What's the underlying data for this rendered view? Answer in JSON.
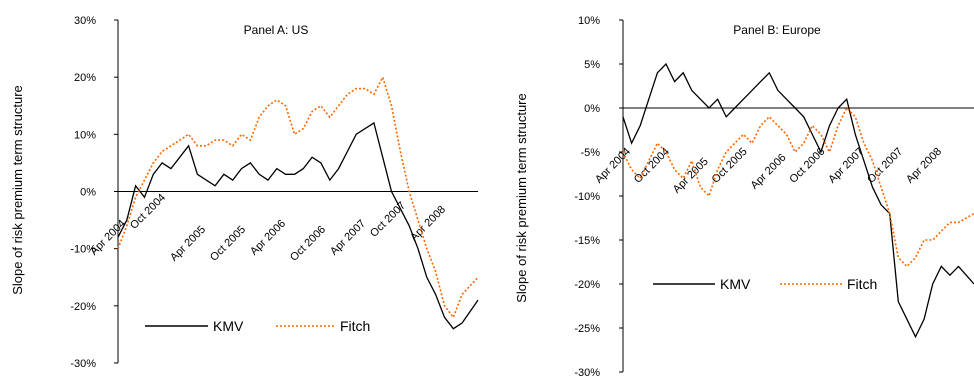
{
  "chart_data": [
    {
      "type": "line",
      "title": "Panel A: US",
      "ylabel": "Slope of risk premium term structure",
      "ylim": [
        -30,
        30
      ],
      "yticks": [
        "30%",
        "20%",
        "10%",
        "0%",
        "-10%",
        "-20%",
        "-30%"
      ],
      "xticks": [
        "Apr 2004",
        "Oct 2004",
        "Apr 2005",
        "Oct 2005",
        "Apr 2006",
        "Oct 2006",
        "Apr 2007",
        "Oct 2007",
        "Apr 2008"
      ],
      "legend_position": "bottom",
      "series": [
        {
          "name": "KMV",
          "color": "#000000",
          "style": "solid",
          "x": [
            0,
            0.25,
            0.5,
            0.75,
            1,
            1.25,
            1.5,
            1.75,
            2,
            2.25,
            2.5,
            2.75,
            3,
            3.25,
            3.5,
            3.75,
            4,
            4.25,
            4.5,
            4.75,
            5,
            5.25,
            5.5,
            5.75,
            6,
            6.25,
            6.5,
            6.75,
            7,
            7.25,
            7.5,
            7.75,
            8,
            8.25,
            8.5,
            8.75,
            9,
            9.25,
            9.5,
            9.75,
            10.2
          ],
          "values": [
            -8,
            -5,
            1,
            -1,
            3,
            5,
            4,
            6,
            8,
            3,
            2,
            1,
            3,
            2,
            4,
            5,
            3,
            2,
            4,
            3,
            3,
            4,
            6,
            5,
            2,
            4,
            7,
            10,
            11,
            12,
            6,
            0,
            -3,
            -6,
            -10,
            -15,
            -18,
            -22,
            -24,
            -23,
            -19
          ]
        },
        {
          "name": "Fitch",
          "color": "#ff6600",
          "style": "dotted",
          "x": [
            0,
            0.25,
            0.5,
            0.75,
            1,
            1.25,
            1.5,
            1.75,
            2,
            2.25,
            2.5,
            2.75,
            3,
            3.25,
            3.5,
            3.75,
            4,
            4.25,
            4.5,
            4.75,
            5,
            5.25,
            5.5,
            5.75,
            6,
            6.25,
            6.5,
            6.75,
            7,
            7.25,
            7.5,
            7.75,
            8,
            8.25,
            8.5,
            8.75,
            9,
            9.25,
            9.5,
            9.75,
            10.2
          ],
          "values": [
            -10,
            -6,
            -1,
            2,
            5,
            7,
            8,
            9,
            10,
            8,
            8,
            9,
            9,
            8,
            10,
            9,
            13,
            15,
            16,
            15,
            10,
            11,
            14,
            15,
            13,
            15,
            17,
            18,
            18,
            17,
            20,
            15,
            7,
            0,
            -5,
            -10,
            -14,
            -20,
            -22,
            -18,
            -15
          ]
        }
      ]
    },
    {
      "type": "line",
      "title": "Panel B: Europe",
      "ylabel": "Slope of risk premium term structure",
      "ylim": [
        -30,
        10
      ],
      "yticks": [
        "10%",
        "5%",
        "0%",
        "-5%",
        "-10%",
        "-15%",
        "-20%",
        "-25%",
        "-30%"
      ],
      "xticks": [
        "Apr 2004",
        "Oct 2004",
        "Apr 2005",
        "Oct 2005",
        "Apr 2006",
        "Oct 2006",
        "Apr 2007",
        "Oct 2007",
        "Apr 2008"
      ],
      "legend_position": "bottom",
      "series": [
        {
          "name": "KMV",
          "color": "#000000",
          "style": "solid",
          "x": [
            0,
            0.25,
            0.5,
            0.75,
            1,
            1.25,
            1.5,
            1.75,
            2,
            2.25,
            2.5,
            2.75,
            3,
            3.25,
            3.5,
            3.75,
            4,
            4.25,
            4.5,
            4.75,
            5,
            5.25,
            5.5,
            5.75,
            6,
            6.25,
            6.5,
            6.75,
            7,
            7.25,
            7.5,
            7.75,
            8,
            8.25,
            8.5,
            8.75,
            9,
            9.25,
            9.5,
            9.75,
            10.2
          ],
          "values": [
            -1,
            -4,
            -2,
            1,
            4,
            5,
            3,
            4,
            2,
            1,
            0,
            1,
            -1,
            0,
            1,
            2,
            3,
            4,
            2,
            1,
            0,
            -1,
            -3,
            -5,
            -2,
            0,
            1,
            -3,
            -6,
            -9,
            -11,
            -12,
            -22,
            -24,
            -26,
            -24,
            -20,
            -18,
            -19,
            -18,
            -20
          ]
        },
        {
          "name": "Fitch",
          "color": "#ff6600",
          "style": "dotted",
          "x": [
            0,
            0.25,
            0.5,
            0.75,
            1,
            1.25,
            1.5,
            1.75,
            2,
            2.25,
            2.5,
            2.75,
            3,
            3.25,
            3.5,
            3.75,
            4,
            4.25,
            4.5,
            4.75,
            5,
            5.25,
            5.5,
            5.75,
            6,
            6.25,
            6.5,
            6.75,
            7,
            7.25,
            7.5,
            7.75,
            8,
            8.25,
            8.5,
            8.75,
            9,
            9.25,
            9.5,
            9.75,
            10.2
          ],
          "values": [
            -5,
            -7,
            -8,
            -6,
            -4,
            -5,
            -7,
            -8,
            -6,
            -9,
            -10,
            -7,
            -5,
            -4,
            -3,
            -4,
            -2,
            -1,
            -2,
            -3,
            -5,
            -4,
            -2,
            -3,
            -5,
            -2,
            0,
            -1,
            -4,
            -6,
            -9,
            -12,
            -17,
            -18,
            -17,
            -15,
            -15,
            -14,
            -13,
            -13,
            -12
          ]
        }
      ]
    }
  ]
}
